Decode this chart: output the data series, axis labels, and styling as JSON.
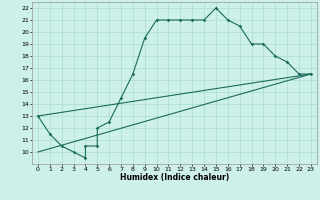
{
  "xlabel": "Humidex (Indice chaleur)",
  "bg_color": "#cdf0ea",
  "grid_color": "#aaddcc",
  "line_color": "#1a6b5a",
  "xlim": [
    -0.5,
    23.5
  ],
  "ylim": [
    9,
    22.5
  ],
  "xticks": [
    0,
    1,
    2,
    3,
    4,
    5,
    6,
    7,
    8,
    9,
    10,
    11,
    12,
    13,
    14,
    15,
    16,
    17,
    18,
    19,
    20,
    21,
    22,
    23
  ],
  "yticks": [
    10,
    11,
    12,
    13,
    14,
    15,
    16,
    17,
    18,
    19,
    20,
    21,
    22
  ],
  "line1_x": [
    0,
    1,
    2,
    3,
    4,
    4,
    5,
    5,
    6,
    7,
    8,
    9,
    10,
    11,
    12,
    13,
    14,
    15,
    16,
    17,
    18,
    19,
    20,
    21,
    22,
    23
  ],
  "line1_y": [
    13,
    11.5,
    10.5,
    10,
    9.5,
    10.5,
    10.5,
    12,
    12.5,
    14.5,
    16.5,
    19.5,
    21,
    21,
    21,
    21,
    21,
    22,
    21,
    20.5,
    19,
    19,
    18,
    17.5,
    16.5,
    16.5
  ],
  "line2_x": [
    0,
    23
  ],
  "line2_y": [
    10,
    16.5
  ],
  "line3_x": [
    0,
    23
  ],
  "line3_y": [
    13,
    16.5
  ],
  "figsize": [
    3.2,
    2.0
  ],
  "dpi": 100
}
